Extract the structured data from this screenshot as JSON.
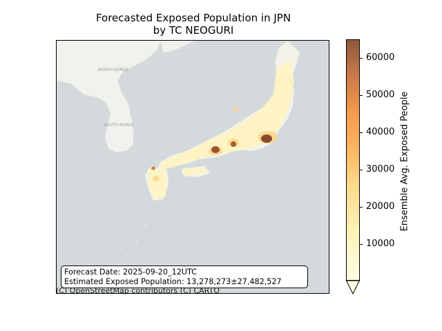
{
  "title_line1": "Forecasted Exposed Population in JPN",
  "title_line2": "by TC NEOGURI",
  "info": {
    "forecast_date": "Forecast Date: 2025-09-20_12UTC",
    "exposed": "Estimated Exposed Population: 13,278,273±27,482,527"
  },
  "attribution": "(C) OpenStreetMap contributors (C) CARTO",
  "basemap_labels": {
    "north_korea": "NORTH KOREA",
    "south_korea": "SOUTH KOREA"
  },
  "colorbar": {
    "label": "Ensemble Avg. Exposed People",
    "ticks": [
      "10000",
      "20000",
      "30000",
      "40000",
      "50000",
      "60000"
    ],
    "colors": [
      "#ffffe5",
      "#fff7bc",
      "#fee391",
      "#fec44f",
      "#fe9929",
      "#ec7014",
      "#cc4c02",
      "#8c5a3c"
    ]
  },
  "colors": {
    "sea": "#d4dadc",
    "land": "#f2f2ef",
    "low": "#fff7c4",
    "high": "#8b4a2b"
  }
}
